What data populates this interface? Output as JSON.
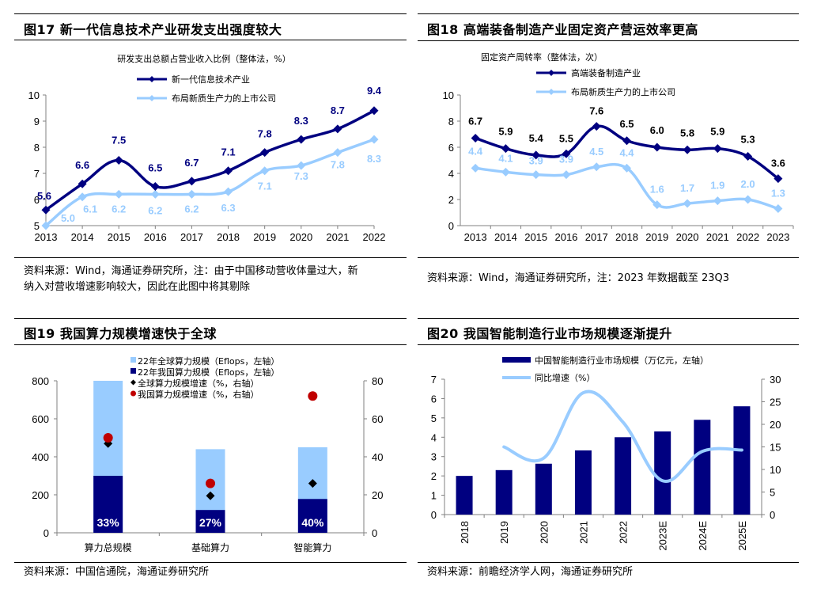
{
  "charts": {
    "fig17": {
      "title": "图17 新一代信息技术产业研发支出强度较大",
      "source": [
        "资料来源：Wind，海通证券研究所，注：由于中国移动营收体量过大，新",
        "纳入对营收增速影响较大，因此在此图中将其剔除"
      ]
    },
    "fig18": {
      "title": "图18 高端装备制造产业固定资产营运效率更高",
      "source": [
        "资料来源：Wind，海通证券研究所，注：2023 年数据截至 23Q3"
      ]
    },
    "fig19": {
      "title": "图19 我国算力规模增速快于全球",
      "source": [
        "资料来源：中国信通院，海通证券研究所"
      ]
    },
    "fig20": {
      "title": "图20 我国智能制造行业市场规模逐渐提升",
      "source": [
        "资料来源：前瞻经济学人网，海通证券研究所"
      ]
    }
  },
  "colors": {
    "navy": "#000080",
    "light_blue": "#99CCFF",
    "red": "#C00000",
    "black": "#000000",
    "axis": "#808080"
  },
  "chart_data": [
    {
      "id": "fig17",
      "type": "line",
      "title": "研发支出总额占营业收入比例（整体法，%）",
      "categories": [
        "2013",
        "2014",
        "2015",
        "2016",
        "2017",
        "2018",
        "2019",
        "2020",
        "2021",
        "2022"
      ],
      "series": [
        {
          "name": "新一代信息技术产业",
          "values": [
            5.6,
            6.6,
            7.5,
            6.5,
            6.7,
            7.1,
            7.8,
            8.3,
            8.7,
            9.4
          ],
          "color": "#000080"
        },
        {
          "name": "布局新质生产力的上市公司",
          "values": [
            5.0,
            6.1,
            6.2,
            6.2,
            6.2,
            6.3,
            7.1,
            7.3,
            7.8,
            8.3
          ],
          "color": "#99CCFF"
        }
      ],
      "ylim": [
        5,
        10
      ],
      "yticks": [
        5,
        6,
        7,
        8,
        9,
        10
      ],
      "legend": "top-center",
      "grid": false
    },
    {
      "id": "fig18",
      "type": "line",
      "title": "固定资产周转率（整体法，次）",
      "categories": [
        "2013",
        "2014",
        "2015",
        "2016",
        "2017",
        "2018",
        "2019",
        "2020",
        "2021",
        "2022",
        "2023"
      ],
      "series": [
        {
          "name": "高端装备制造产业",
          "values": [
            6.7,
            5.9,
            5.4,
            5.5,
            7.6,
            6.5,
            6.0,
            5.8,
            5.9,
            5.3,
            3.6
          ],
          "color": "#000080"
        },
        {
          "name": "布局新质生产力的上市公司",
          "values": [
            4.4,
            4.1,
            3.9,
            3.9,
            4.5,
            4.4,
            1.6,
            1.7,
            1.9,
            2.0,
            1.3
          ],
          "color": "#99CCFF"
        }
      ],
      "ylim": [
        0,
        10
      ],
      "yticks": [
        0,
        2,
        4,
        6,
        8,
        10
      ],
      "legend": "top-center",
      "grid": false
    },
    {
      "id": "fig19",
      "type": "bar",
      "title": "",
      "categories": [
        "算力总规模",
        "基础算力",
        "智能算力"
      ],
      "series": [
        {
          "name": "22年全球算力规模（Eflops，左轴）",
          "kind": "bar",
          "axis": "left",
          "values": [
            800,
            440,
            450
          ],
          "color": "#99CCFF"
        },
        {
          "name": "22年我国算力规模（Eflops，左轴）",
          "kind": "bar",
          "axis": "left",
          "values": [
            300,
            120,
            178
          ],
          "color": "#000080"
        },
        {
          "name": "全球算力规模增速（%，右轴）",
          "kind": "diamond",
          "axis": "right",
          "values": [
            47,
            19.5,
            26
          ],
          "color": "#000000"
        },
        {
          "name": "我国算力规模增速（%，右轴）",
          "kind": "circle",
          "axis": "right",
          "values": [
            50,
            26,
            72
          ],
          "color": "#C00000"
        }
      ],
      "bar_labels": [
        "33%",
        "27%",
        "40%"
      ],
      "ylim": [
        0,
        800
      ],
      "yticks": [
        0,
        200,
        400,
        600,
        800
      ],
      "y2lim": [
        0,
        80
      ],
      "y2ticks": [
        0,
        20,
        40,
        60,
        80
      ],
      "legend": "top-center",
      "grid": false
    },
    {
      "id": "fig20",
      "type": "bar",
      "title": "",
      "categories": [
        "2018",
        "2019",
        "2020",
        "2021",
        "2022",
        "2023E",
        "2024E",
        "2025E"
      ],
      "series": [
        {
          "name": "中国智能制造行业市场规模（万亿元，左轴）",
          "kind": "bar",
          "axis": "left",
          "values": [
            2.0,
            2.3,
            2.63,
            3.32,
            4.0,
            4.3,
            4.9,
            5.6
          ],
          "color": "#000080"
        },
        {
          "name": "同比增速（%）",
          "kind": "line",
          "axis": "right",
          "values": [
            null,
            15.0,
            12.5,
            27.0,
            20.5,
            7.5,
            14.0,
            14.3
          ],
          "color": "#99CCFF"
        }
      ],
      "ylim": [
        0,
        7
      ],
      "yticks": [
        0,
        1,
        2,
        3,
        4,
        5,
        6,
        7
      ],
      "y2lim": [
        0,
        30
      ],
      "y2ticks": [
        0,
        5,
        10,
        15,
        20,
        25,
        30
      ],
      "legend": "top-center",
      "grid": false
    }
  ]
}
